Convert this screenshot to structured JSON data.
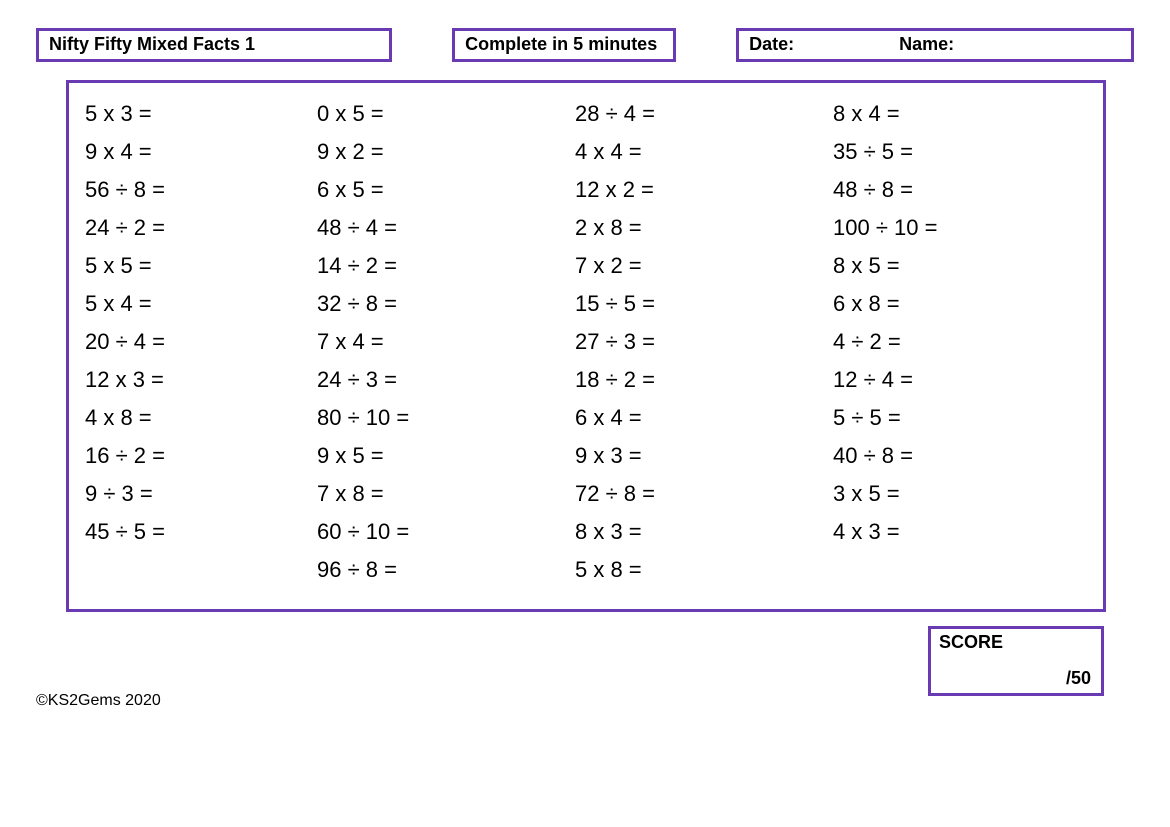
{
  "header": {
    "title": "Nifty Fifty Mixed Facts 1",
    "time_instruction": "Complete in 5 minutes",
    "date_label": "Date:",
    "name_label": "Name:"
  },
  "style": {
    "border_color": "#6a3ab2",
    "background_color": "#ffffff",
    "text_color": "#000000",
    "header_font_size_pt": 14,
    "problem_font_size_pt": 17,
    "font_family": "Comic Sans MS",
    "columns": 4
  },
  "problems": {
    "col1": [
      "5 x 3 =",
      "9 x 4 =",
      "56 ÷ 8 =",
      "24 ÷ 2 =",
      "5 x 5 =",
      "5 x 4 =",
      "20 ÷ 4 =",
      "12 x 3 =",
      "4 x 8 =",
      "16 ÷ 2 =",
      "9 ÷ 3 =",
      "45 ÷ 5 ="
    ],
    "col2": [
      "0 x 5 =",
      "9 x 2 =",
      "6 x 5 =",
      "48 ÷ 4 =",
      "14 ÷ 2 =",
      "32 ÷ 8 =",
      "7 x 4 =",
      "24 ÷ 3 =",
      "80 ÷ 10 =",
      "9 x 5 =",
      "7 x 8 =",
      "60 ÷ 10 =",
      "96 ÷ 8 ="
    ],
    "col3": [
      "28 ÷ 4 =",
      "4 x 4 =",
      "12 x 2 =",
      "2 x 8 =",
      "7 x 2 =",
      "15 ÷ 5 =",
      "27 ÷ 3 =",
      "18 ÷ 2 =",
      "6 x 4 =",
      "9 x 3 =",
      "72 ÷ 8 =",
      "8 x 3 =",
      "5 x 8 ="
    ],
    "col4": [
      "8 x 4 =",
      "35 ÷ 5 =",
      "48 ÷ 8 =",
      "100 ÷ 10 =",
      "8 x 5 =",
      "6 x 8 =",
      "4 ÷ 2 =",
      "12 ÷ 4 =",
      "5 ÷ 5 =",
      "40 ÷ 8 =",
      "3 x 5 =",
      "4 x 3 ="
    ]
  },
  "footer": {
    "copyright": "©KS2Gems 2020",
    "score_label": "SCORE",
    "score_total": "/50"
  }
}
